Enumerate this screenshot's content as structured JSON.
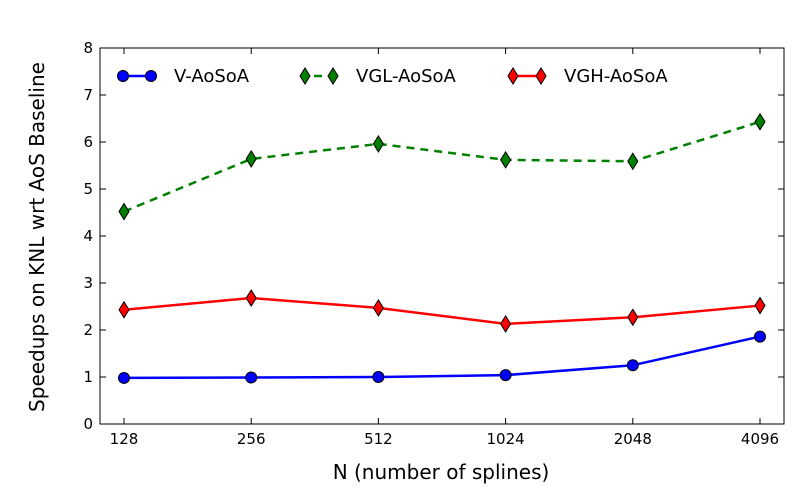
{
  "chart_data": {
    "type": "line",
    "title": "",
    "xlabel": "N (number of splines)",
    "ylabel": "Speedups on KNL wrt AoS Baseline",
    "categories": [
      "128",
      "256",
      "512",
      "1024",
      "2048",
      "4096"
    ],
    "ylim": [
      0,
      8
    ],
    "yticks": [
      "0",
      "1",
      "2",
      "3",
      "4",
      "5",
      "6",
      "7",
      "8"
    ],
    "grid": false,
    "legend_position": "top",
    "series": [
      {
        "name": "V-AoSoA",
        "color": "#0000ff",
        "marker": "circle",
        "linestyle": "solid",
        "values": [
          0.98,
          0.99,
          1.0,
          1.04,
          1.25,
          1.86
        ]
      },
      {
        "name": "VGL-AoSoA",
        "color": "#008000",
        "marker": "diamond",
        "linestyle": "dashed",
        "values": [
          4.52,
          5.64,
          5.96,
          5.62,
          5.59,
          6.43
        ]
      },
      {
        "name": "VGH-AoSoA",
        "color": "#ff0000",
        "marker": "diamond",
        "linestyle": "solid",
        "values": [
          2.43,
          2.68,
          2.47,
          2.13,
          2.27,
          2.52
        ]
      }
    ]
  }
}
